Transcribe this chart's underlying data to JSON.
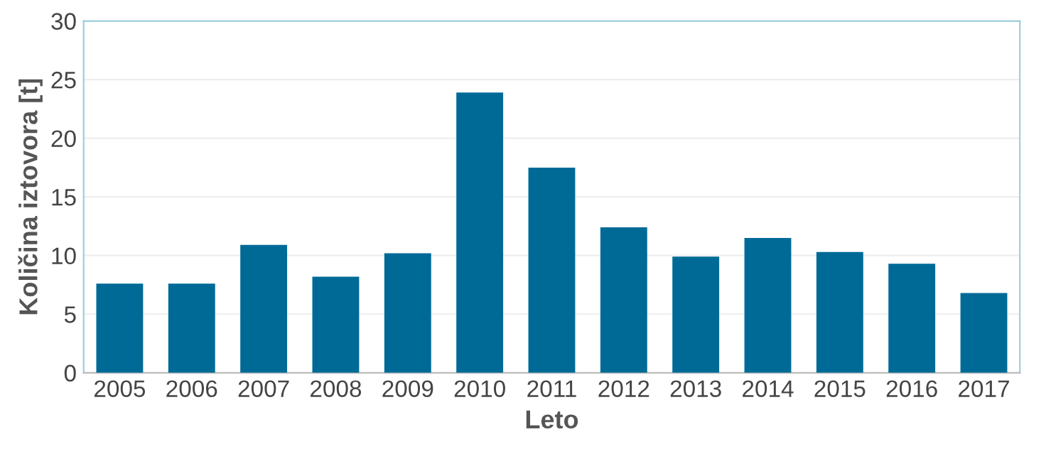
{
  "chart_data": {
    "type": "bar",
    "xlabel": "Leto",
    "ylabel": "Količina iztovora [t]",
    "categories": [
      "2005",
      "2006",
      "2007",
      "2008",
      "2009",
      "2010",
      "2011",
      "2012",
      "2013",
      "2014",
      "2015",
      "2016",
      "2017"
    ],
    "values": [
      7.6,
      7.6,
      10.9,
      8.2,
      10.2,
      23.9,
      17.5,
      12.4,
      9.9,
      11.5,
      10.3,
      9.3,
      6.8
    ],
    "color": "#006a96",
    "ylim": [
      0,
      30
    ],
    "yticks": [
      0,
      5,
      10,
      15,
      20,
      25,
      30
    ],
    "grid": "y"
  }
}
